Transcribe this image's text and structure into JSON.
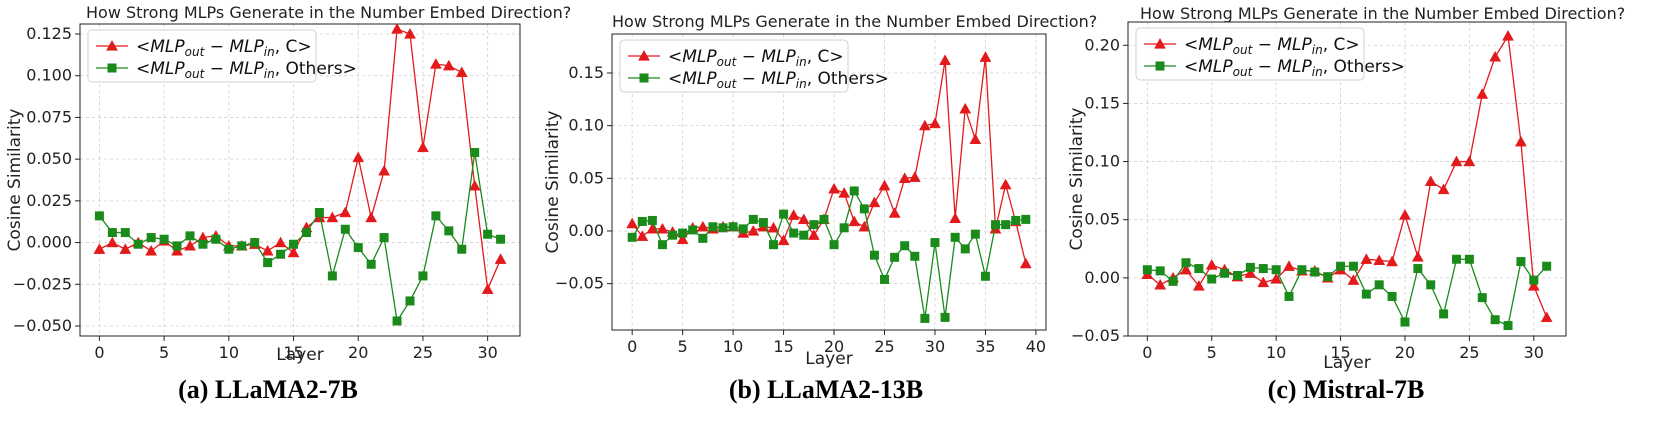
{
  "chart_data": [
    {
      "type": "line",
      "title": "How Strong MLPs Generate in the Number Embed Direction?",
      "caption": "(a) LLaMA2-7B",
      "xlabel": "Layer",
      "ylabel": "Cosine Similarity",
      "xlim": [
        -1.5,
        32.5
      ],
      "ylim": [
        -0.056,
        0.131
      ],
      "xticks": [
        0,
        5,
        10,
        15,
        20,
        25,
        30
      ],
      "yticks": [
        -0.05,
        -0.025,
        0,
        0.025,
        0.05,
        0.075,
        0.1,
        0.125
      ],
      "ytick_labels": [
        "−0.050",
        "−0.025",
        "0.000",
        "0.025",
        "0.050",
        "0.075",
        "0.100",
        "0.125"
      ],
      "grid": true,
      "legend_position": "top-left",
      "x": [
        0,
        1,
        2,
        3,
        4,
        5,
        6,
        7,
        8,
        9,
        10,
        11,
        12,
        13,
        14,
        15,
        16,
        17,
        18,
        19,
        20,
        21,
        22,
        23,
        24,
        25,
        26,
        27,
        28,
        29,
        30,
        31
      ],
      "series": [
        {
          "name": "C",
          "color": "#e31a1c",
          "marker": "triangle",
          "values": [
            -0.004,
            0.0,
            -0.004,
            0.0,
            -0.005,
            0.001,
            -0.005,
            -0.002,
            0.003,
            0.004,
            -0.002,
            -0.002,
            -0.001,
            -0.005,
            0.0,
            -0.006,
            0.009,
            0.015,
            0.015,
            0.018,
            0.051,
            0.015,
            0.043,
            0.128,
            0.125,
            0.057,
            0.107,
            0.106,
            0.102,
            0.034,
            -0.028,
            -0.01
          ]
        },
        {
          "name": "Others",
          "color": "#1a8a1a",
          "marker": "square",
          "values": [
            0.016,
            0.006,
            0.006,
            -0.001,
            0.003,
            0.002,
            -0.002,
            0.004,
            -0.001,
            0.002,
            -0.004,
            -0.002,
            0.0,
            -0.012,
            -0.007,
            -0.001,
            0.006,
            0.018,
            -0.02,
            0.008,
            -0.003,
            -0.013,
            0.003,
            -0.047,
            -0.035,
            -0.02,
            0.016,
            0.007,
            -0.004,
            0.054,
            0.005,
            0.002
          ]
        }
      ]
    },
    {
      "type": "line",
      "title": "How Strong MLPs Generate in the Number Embed Direction?",
      "caption": "(b) LLaMA2-13B",
      "xlabel": "Layer",
      "ylabel": "Cosine Similarity",
      "xlim": [
        -2,
        41
      ],
      "ylim": [
        -0.094,
        0.187
      ],
      "xticks": [
        0,
        5,
        10,
        15,
        20,
        25,
        30,
        35,
        40
      ],
      "yticks": [
        -0.05,
        0,
        0.05,
        0.1,
        0.15
      ],
      "ytick_labels": [
        "−0.05",
        "0.00",
        "0.05",
        "0.10",
        "0.15"
      ],
      "grid": true,
      "legend_position": "top-left",
      "x": [
        0,
        1,
        2,
        3,
        4,
        5,
        6,
        7,
        8,
        9,
        10,
        11,
        12,
        13,
        14,
        15,
        16,
        17,
        18,
        19,
        20,
        21,
        22,
        23,
        24,
        25,
        26,
        27,
        28,
        29,
        30,
        31,
        32,
        33,
        34,
        35,
        36,
        37,
        38,
        39
      ],
      "series": [
        {
          "name": "C",
          "color": "#e31a1c",
          "marker": "triangle",
          "values": [
            0.007,
            -0.005,
            0.002,
            0.002,
            -0.001,
            -0.008,
            0.003,
            0.004,
            0.002,
            0.004,
            0.004,
            -0.002,
            0.0,
            0.004,
            0.003,
            -0.009,
            0.015,
            0.011,
            -0.004,
            0.011,
            0.04,
            0.036,
            0.009,
            0.004,
            0.027,
            0.043,
            0.017,
            0.05,
            0.051,
            0.1,
            0.102,
            0.162,
            0.012,
            0.116,
            0.087,
            0.165,
            0.002,
            0.044,
            0.009,
            -0.031
          ]
        },
        {
          "name": "Others",
          "color": "#1a8a1a",
          "marker": "square",
          "values": [
            -0.006,
            0.009,
            0.01,
            -0.013,
            -0.004,
            -0.002,
            0.001,
            -0.007,
            0.004,
            0.003,
            0.004,
            0.002,
            0.011,
            0.008,
            -0.013,
            0.016,
            -0.002,
            -0.004,
            0.006,
            0.011,
            -0.013,
            0.003,
            0.038,
            0.021,
            -0.023,
            -0.046,
            -0.025,
            -0.014,
            -0.024,
            -0.083,
            -0.011,
            -0.082,
            -0.006,
            -0.017,
            -0.003,
            -0.043,
            0.006,
            0.006,
            0.01,
            0.011
          ]
        }
      ]
    },
    {
      "type": "line",
      "title": "How Strong MLPs Generate in the Number Embed Direction?",
      "caption": "(c) Mistral-7B",
      "xlabel": "Layer",
      "ylabel": "Cosine Similarity",
      "xlim": [
        -1.5,
        32.5
      ],
      "ylim": [
        -0.05,
        0.22
      ],
      "xticks": [
        0,
        5,
        10,
        15,
        20,
        25,
        30
      ],
      "yticks": [
        -0.05,
        0,
        0.05,
        0.1,
        0.15,
        0.2
      ],
      "ytick_labels": [
        "−0.05",
        "0.00",
        "0.05",
        "0.10",
        "0.15",
        "0.20"
      ],
      "grid": true,
      "legend_position": "top-left",
      "x": [
        0,
        1,
        2,
        3,
        4,
        5,
        6,
        7,
        8,
        9,
        10,
        11,
        12,
        13,
        14,
        15,
        16,
        17,
        18,
        19,
        20,
        21,
        22,
        23,
        24,
        25,
        26,
        27,
        28,
        29,
        30,
        31
      ],
      "series": [
        {
          "name": "C",
          "color": "#e31a1c",
          "marker": "triangle",
          "values": [
            0.003,
            -0.006,
            0.0,
            0.007,
            -0.007,
            0.011,
            0.007,
            0.001,
            0.004,
            -0.004,
            -0.001,
            0.01,
            0.006,
            0.006,
            0.0,
            0.007,
            -0.002,
            0.016,
            0.015,
            0.014,
            0.054,
            0.018,
            0.083,
            0.076,
            0.1,
            0.1,
            0.158,
            0.19,
            0.208,
            0.117,
            -0.007,
            -0.034
          ]
        },
        {
          "name": "Others",
          "color": "#1a8a1a",
          "marker": "square",
          "values": [
            0.007,
            0.006,
            -0.003,
            0.013,
            0.008,
            -0.001,
            0.004,
            0.002,
            0.009,
            0.008,
            0.007,
            -0.016,
            0.007,
            0.005,
            0.001,
            0.01,
            0.01,
            -0.014,
            -0.006,
            -0.016,
            -0.038,
            0.008,
            -0.006,
            -0.031,
            0.016,
            0.016,
            -0.017,
            -0.036,
            -0.041,
            0.014,
            -0.002,
            0.01
          ]
        }
      ]
    }
  ]
}
